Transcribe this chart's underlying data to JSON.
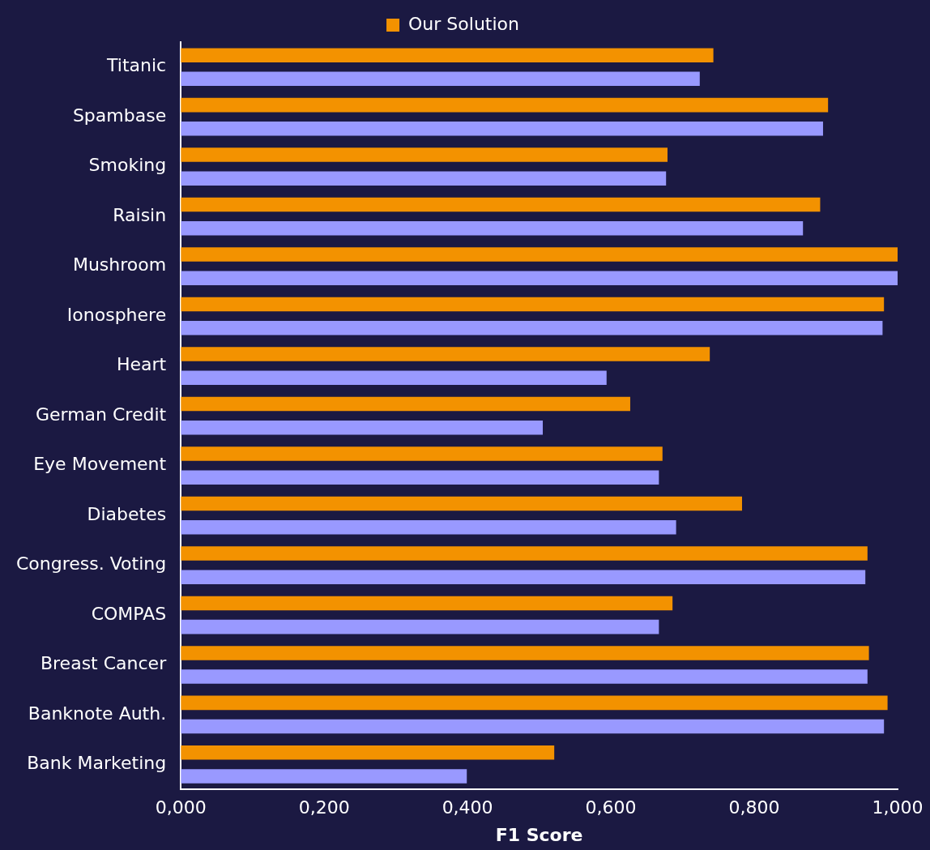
{
  "chart_data": {
    "type": "bar",
    "orientation": "horizontal",
    "xlabel": "F1 Score",
    "categories": [
      "Titanic",
      "Spambase",
      "Smoking",
      "Raisin",
      "Mushroom",
      "Ionosphere",
      "Heart",
      "German Credit",
      "Eye Movement",
      "Diabetes",
      "Congress. Voting",
      "COMPAS",
      "Breast Cancer",
      "Banknote Auth.",
      "Bank Marketing"
    ],
    "series": [
      {
        "name": "Our Solution",
        "color": "#f39200",
        "values": [
          0.743,
          0.903,
          0.679,
          0.892,
          1.0,
          0.981,
          0.738,
          0.627,
          0.672,
          0.783,
          0.958,
          0.686,
          0.96,
          0.986,
          0.521
        ]
      },
      {
        "color": "#9999ff",
        "values": [
          0.724,
          0.896,
          0.677,
          0.868,
          1.0,
          0.979,
          0.594,
          0.505,
          0.667,
          0.691,
          0.955,
          0.667,
          0.958,
          0.981,
          0.399
        ]
      }
    ],
    "xlim": [
      0,
      1
    ],
    "xticks": [
      {
        "value": 0,
        "label": "0,000"
      },
      {
        "value": 0.2,
        "label": "0,200"
      },
      {
        "value": 0.4,
        "label": "0,400"
      },
      {
        "value": 0.6,
        "label": "0,600"
      },
      {
        "value": 0.8,
        "label": "0,800"
      },
      {
        "value": 1,
        "label": "1,000"
      }
    ],
    "grid": false,
    "legend": "top"
  }
}
